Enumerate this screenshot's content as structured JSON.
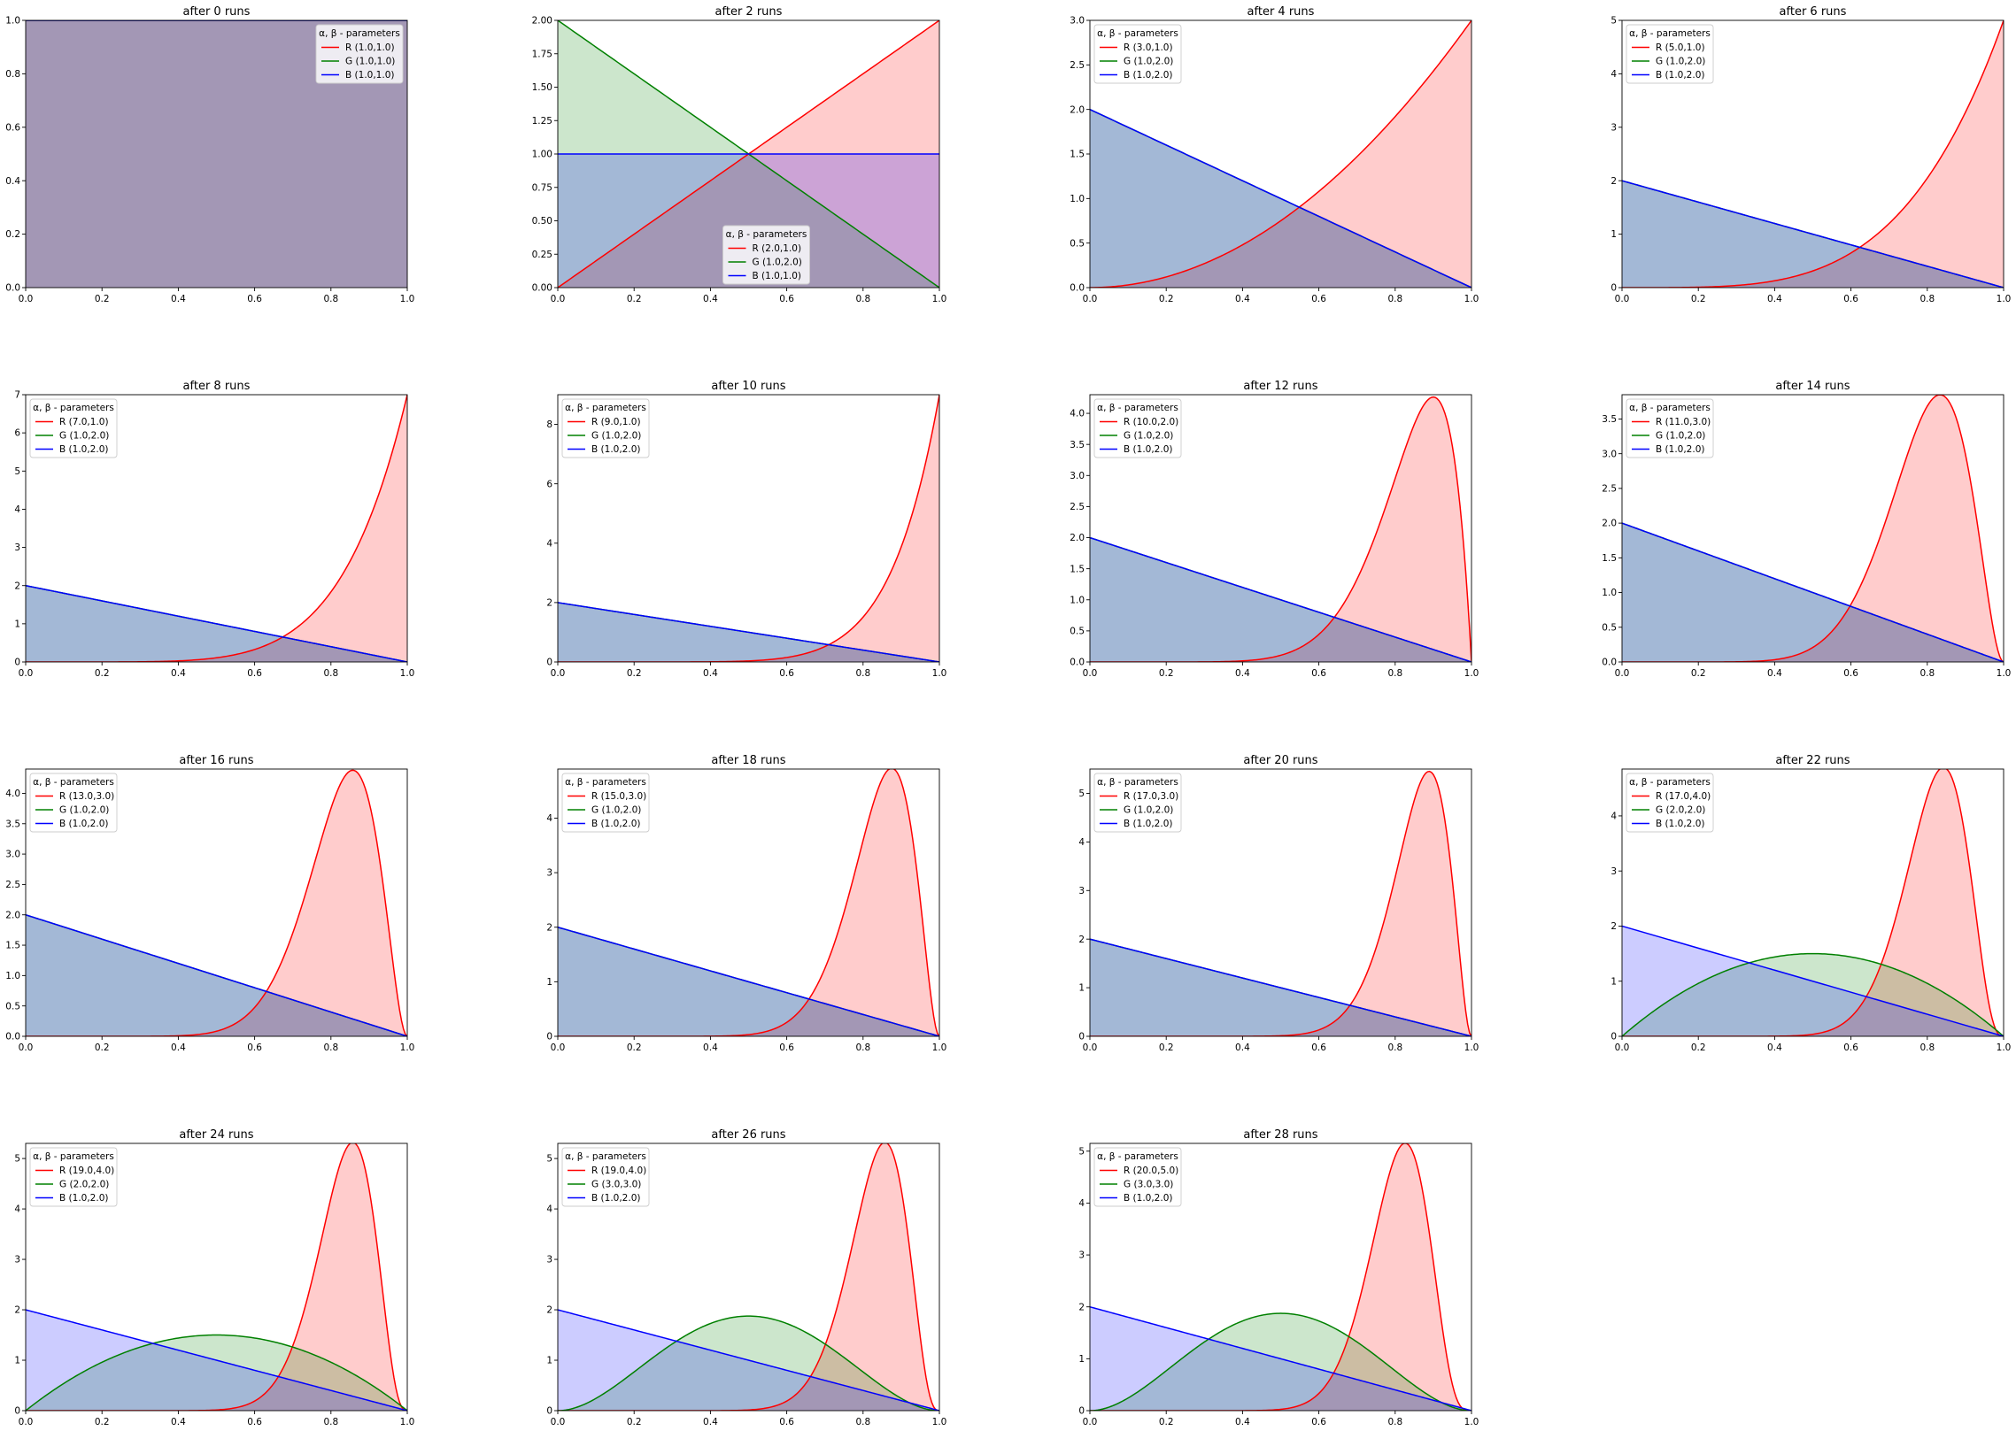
{
  "figure": {
    "colors": {
      "R": "#ff0000",
      "G": "#008000",
      "B": "#0000ff"
    },
    "fill_colors": {
      "R": "#ff0000",
      "G": "#008000",
      "B": "#0000ff"
    },
    "fill_opacity": 0.2
  },
  "chart_data": [
    {
      "type": "area",
      "title": "after 0 runs",
      "legend_title": "α, β - parameters",
      "legend_loc": "upper right",
      "xlim": [
        0,
        1
      ],
      "ylim": [
        0,
        1
      ],
      "xticks": [
        "0.0",
        "0.2",
        "0.4",
        "0.6",
        "0.8",
        "1.0"
      ],
      "yticks": [
        "0.0",
        "0.2",
        "0.4",
        "0.6",
        "0.8",
        "1.0"
      ],
      "series": [
        {
          "name": "R (1.0,1.0)",
          "alpha": 1,
          "beta": 1
        },
        {
          "name": "G (1.0,1.0)",
          "alpha": 1,
          "beta": 1
        },
        {
          "name": "B (1.0,1.0)",
          "alpha": 1,
          "beta": 1
        }
      ]
    },
    {
      "type": "area",
      "title": "after 2 runs",
      "legend_title": "α, β - parameters",
      "legend_loc": "lower center",
      "xlim": [
        0,
        1
      ],
      "ylim": [
        0,
        2
      ],
      "xticks": [
        "0.0",
        "0.2",
        "0.4",
        "0.6",
        "0.8",
        "1.0"
      ],
      "yticks": [
        "0.00",
        "0.25",
        "0.50",
        "0.75",
        "1.00",
        "1.25",
        "1.50",
        "1.75",
        "2.00"
      ],
      "series": [
        {
          "name": "R (2.0,1.0)",
          "alpha": 2,
          "beta": 1
        },
        {
          "name": "G (1.0,2.0)",
          "alpha": 1,
          "beta": 2
        },
        {
          "name": "B (1.0,1.0)",
          "alpha": 1,
          "beta": 1
        }
      ]
    },
    {
      "type": "area",
      "title": "after 4 runs",
      "legend_title": "α, β - parameters",
      "legend_loc": "upper left",
      "xlim": [
        0,
        1
      ],
      "ylim": [
        0,
        3
      ],
      "xticks": [
        "0.0",
        "0.2",
        "0.4",
        "0.6",
        "0.8",
        "1.0"
      ],
      "yticks": [
        "0.0",
        "0.5",
        "1.0",
        "1.5",
        "2.0",
        "2.5",
        "3.0"
      ],
      "series": [
        {
          "name": "R (3.0,1.0)",
          "alpha": 3,
          "beta": 1
        },
        {
          "name": "G (1.0,2.0)",
          "alpha": 1,
          "beta": 2
        },
        {
          "name": "B (1.0,2.0)",
          "alpha": 1,
          "beta": 2
        }
      ]
    },
    {
      "type": "area",
      "title": "after 6 runs",
      "legend_title": "α, β - parameters",
      "legend_loc": "upper left",
      "xlim": [
        0,
        1
      ],
      "ylim": [
        0,
        5
      ],
      "xticks": [
        "0.0",
        "0.2",
        "0.4",
        "0.6",
        "0.8",
        "1.0"
      ],
      "yticks": [
        "0",
        "1",
        "2",
        "3",
        "4",
        "5"
      ],
      "series": [
        {
          "name": "R (5.0,1.0)",
          "alpha": 5,
          "beta": 1
        },
        {
          "name": "G (1.0,2.0)",
          "alpha": 1,
          "beta": 2
        },
        {
          "name": "B (1.0,2.0)",
          "alpha": 1,
          "beta": 2
        }
      ]
    },
    {
      "type": "area",
      "title": "after 8 runs",
      "legend_title": "α, β - parameters",
      "legend_loc": "upper left",
      "xlim": [
        0,
        1
      ],
      "ylim": [
        0,
        7
      ],
      "xticks": [
        "0.0",
        "0.2",
        "0.4",
        "0.6",
        "0.8",
        "1.0"
      ],
      "yticks": [
        "0",
        "1",
        "2",
        "3",
        "4",
        "5",
        "6",
        "7"
      ],
      "series": [
        {
          "name": "R (7.0,1.0)",
          "alpha": 7,
          "beta": 1
        },
        {
          "name": "G (1.0,2.0)",
          "alpha": 1,
          "beta": 2
        },
        {
          "name": "B (1.0,2.0)",
          "alpha": 1,
          "beta": 2
        }
      ]
    },
    {
      "type": "area",
      "title": "after 10 runs",
      "legend_title": "α, β - parameters",
      "legend_loc": "upper left",
      "xlim": [
        0,
        1
      ],
      "ylim": [
        0,
        9
      ],
      "xticks": [
        "0.0",
        "0.2",
        "0.4",
        "0.6",
        "0.8",
        "1.0"
      ],
      "yticks": [
        "0",
        "2",
        "4",
        "6",
        "8"
      ],
      "series": [
        {
          "name": "R (9.0,1.0)",
          "alpha": 9,
          "beta": 1
        },
        {
          "name": "G (1.0,2.0)",
          "alpha": 1,
          "beta": 2
        },
        {
          "name": "B (1.0,2.0)",
          "alpha": 1,
          "beta": 2
        }
      ]
    },
    {
      "type": "area",
      "title": "after 12 runs",
      "legend_title": "α, β - parameters",
      "legend_loc": "upper left",
      "xlim": [
        0,
        1
      ],
      "ylim": [
        0,
        4.3
      ],
      "xticks": [
        "0.0",
        "0.2",
        "0.4",
        "0.6",
        "0.8",
        "1.0"
      ],
      "yticks": [
        "0.0",
        "0.5",
        "1.0",
        "1.5",
        "2.0",
        "2.5",
        "3.0",
        "3.5",
        "4.0"
      ],
      "series": [
        {
          "name": "R (10.0,2.0)",
          "alpha": 10,
          "beta": 2
        },
        {
          "name": "G (1.0,2.0)",
          "alpha": 1,
          "beta": 2
        },
        {
          "name": "B (1.0,2.0)",
          "alpha": 1,
          "beta": 2
        }
      ]
    },
    {
      "type": "area",
      "title": "after 14 runs",
      "legend_title": "α, β - parameters",
      "legend_loc": "upper left",
      "xlim": [
        0,
        1
      ],
      "ylim": [
        0,
        3.85
      ],
      "xticks": [
        "0.0",
        "0.2",
        "0.4",
        "0.6",
        "0.8",
        "1.0"
      ],
      "yticks": [
        "0.0",
        "0.5",
        "1.0",
        "1.5",
        "2.0",
        "2.5",
        "3.0",
        "3.5"
      ],
      "series": [
        {
          "name": "R (11.0,3.0)",
          "alpha": 11,
          "beta": 3
        },
        {
          "name": "G (1.0,2.0)",
          "alpha": 1,
          "beta": 2
        },
        {
          "name": "B (1.0,2.0)",
          "alpha": 1,
          "beta": 2
        }
      ]
    },
    {
      "type": "area",
      "title": "after 16 runs",
      "legend_title": "α, β - parameters",
      "legend_loc": "upper left",
      "xlim": [
        0,
        1
      ],
      "ylim": [
        0,
        4.4
      ],
      "xticks": [
        "0.0",
        "0.2",
        "0.4",
        "0.6",
        "0.8",
        "1.0"
      ],
      "yticks": [
        "0.0",
        "0.5",
        "1.0",
        "1.5",
        "2.0",
        "2.5",
        "3.0",
        "3.5",
        "4.0"
      ],
      "series": [
        {
          "name": "R (13.0,3.0)",
          "alpha": 13,
          "beta": 3
        },
        {
          "name": "G (1.0,2.0)",
          "alpha": 1,
          "beta": 2
        },
        {
          "name": "B (1.0,2.0)",
          "alpha": 1,
          "beta": 2
        }
      ]
    },
    {
      "type": "area",
      "title": "after 18 runs",
      "legend_title": "α, β - parameters",
      "legend_loc": "upper left",
      "xlim": [
        0,
        1
      ],
      "ylim": [
        0,
        4.9
      ],
      "xticks": [
        "0.0",
        "0.2",
        "0.4",
        "0.6",
        "0.8",
        "1.0"
      ],
      "yticks": [
        "0",
        "1",
        "2",
        "3",
        "4"
      ],
      "series": [
        {
          "name": "R (15.0,3.0)",
          "alpha": 15,
          "beta": 3
        },
        {
          "name": "G (1.0,2.0)",
          "alpha": 1,
          "beta": 2
        },
        {
          "name": "B (1.0,2.0)",
          "alpha": 1,
          "beta": 2
        }
      ]
    },
    {
      "type": "area",
      "title": "after 20 runs",
      "legend_title": "α, β - parameters",
      "legend_loc": "upper left",
      "xlim": [
        0,
        1
      ],
      "ylim": [
        0,
        5.5
      ],
      "xticks": [
        "0.0",
        "0.2",
        "0.4",
        "0.6",
        "0.8",
        "1.0"
      ],
      "yticks": [
        "0",
        "1",
        "2",
        "3",
        "4",
        "5"
      ],
      "series": [
        {
          "name": "R (17.0,3.0)",
          "alpha": 17,
          "beta": 3
        },
        {
          "name": "G (1.0,2.0)",
          "alpha": 1,
          "beta": 2
        },
        {
          "name": "B (1.0,2.0)",
          "alpha": 1,
          "beta": 2
        }
      ]
    },
    {
      "type": "area",
      "title": "after 22 runs",
      "legend_title": "α, β - parameters",
      "legend_loc": "upper left",
      "xlim": [
        0,
        1
      ],
      "ylim": [
        0,
        4.85
      ],
      "xticks": [
        "0.0",
        "0.2",
        "0.4",
        "0.6",
        "0.8",
        "1.0"
      ],
      "yticks": [
        "0",
        "1",
        "2",
        "3",
        "4"
      ],
      "series": [
        {
          "name": "R (17.0,4.0)",
          "alpha": 17,
          "beta": 4
        },
        {
          "name": "G (2.0,2.0)",
          "alpha": 2,
          "beta": 2
        },
        {
          "name": "B (1.0,2.0)",
          "alpha": 1,
          "beta": 2
        }
      ]
    },
    {
      "type": "area",
      "title": "after 24 runs",
      "legend_title": "α, β - parameters",
      "legend_loc": "upper left",
      "xlim": [
        0,
        1
      ],
      "ylim": [
        0,
        5.3
      ],
      "xticks": [
        "0.0",
        "0.2",
        "0.4",
        "0.6",
        "0.8",
        "1.0"
      ],
      "yticks": [
        "0",
        "1",
        "2",
        "3",
        "4",
        "5"
      ],
      "series": [
        {
          "name": "R (19.0,4.0)",
          "alpha": 19,
          "beta": 4
        },
        {
          "name": "G (2.0,2.0)",
          "alpha": 2,
          "beta": 2
        },
        {
          "name": "B (1.0,2.0)",
          "alpha": 1,
          "beta": 2
        }
      ]
    },
    {
      "type": "area",
      "title": "after 26 runs",
      "legend_title": "α, β - parameters",
      "legend_loc": "upper left",
      "xlim": [
        0,
        1
      ],
      "ylim": [
        0,
        5.3
      ],
      "xticks": [
        "0.0",
        "0.2",
        "0.4",
        "0.6",
        "0.8",
        "1.0"
      ],
      "yticks": [
        "0",
        "1",
        "2",
        "3",
        "4",
        "5"
      ],
      "series": [
        {
          "name": "R (19.0,4.0)",
          "alpha": 19,
          "beta": 4
        },
        {
          "name": "G (3.0,3.0)",
          "alpha": 3,
          "beta": 3
        },
        {
          "name": "B (1.0,2.0)",
          "alpha": 1,
          "beta": 2
        }
      ]
    },
    {
      "type": "area",
      "title": "after 28 runs",
      "legend_title": "α, β - parameters",
      "legend_loc": "upper left",
      "xlim": [
        0,
        1
      ],
      "ylim": [
        0,
        5.15
      ],
      "xticks": [
        "0.0",
        "0.2",
        "0.4",
        "0.6",
        "0.8",
        "1.0"
      ],
      "yticks": [
        "0",
        "1",
        "2",
        "3",
        "4",
        "5"
      ],
      "series": [
        {
          "name": "R (20.0,5.0)",
          "alpha": 20,
          "beta": 5
        },
        {
          "name": "G (3.0,3.0)",
          "alpha": 3,
          "beta": 3
        },
        {
          "name": "B (1.0,2.0)",
          "alpha": 1,
          "beta": 2
        }
      ]
    }
  ]
}
